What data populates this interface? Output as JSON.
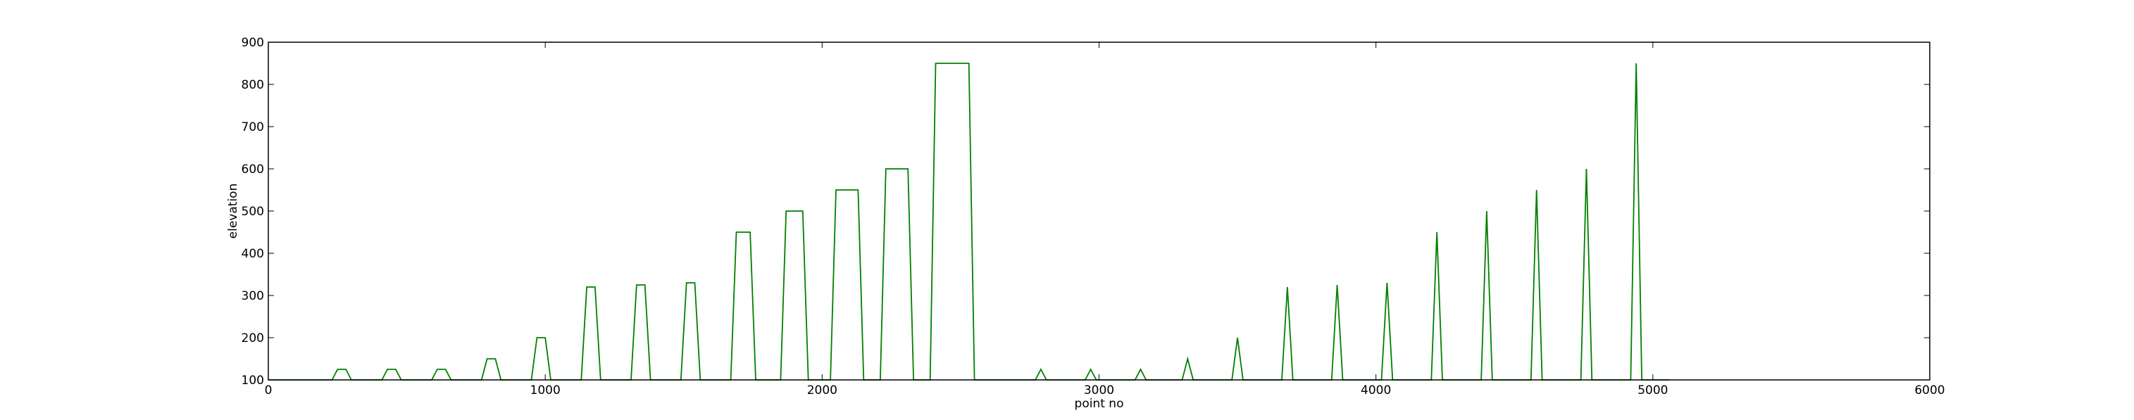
{
  "chart_data": {
    "type": "line",
    "xlabel": "point no",
    "ylabel": "elevation",
    "xlim": [
      0,
      6000
    ],
    "ylim": [
      100,
      900
    ],
    "xticks": [
      0,
      1000,
      2000,
      3000,
      4000,
      5000,
      6000
    ],
    "yticks": [
      100,
      200,
      300,
      400,
      500,
      600,
      700,
      800,
      900
    ],
    "grid": false,
    "legend": "none",
    "series_color": "#008000",
    "series": [
      {
        "x": [
          0,
          230,
          250,
          280,
          300,
          410,
          430,
          460,
          480,
          590,
          610,
          640,
          660,
          770,
          790,
          820,
          840,
          950,
          970,
          1000,
          1020,
          1130,
          1150,
          1180,
          1200,
          1310,
          1330,
          1360,
          1380,
          1490,
          1510,
          1540,
          1560,
          1670,
          1690,
          1740,
          1760,
          1850,
          1870,
          1930,
          1950,
          2030,
          2050,
          2130,
          2150,
          2210,
          2230,
          2310,
          2330,
          2390,
          2410,
          2530,
          2550,
          2770,
          2790,
          2810,
          2950,
          2970,
          2990,
          3130,
          3150,
          3170,
          3300,
          3320,
          3340,
          3480,
          3500,
          3520,
          3660,
          3680,
          3700,
          3840,
          3860,
          3880,
          4020,
          4040,
          4060,
          4200,
          4220,
          4240,
          4380,
          4400,
          4420,
          4560,
          4580,
          4600,
          4740,
          4760,
          4780,
          4920,
          4940,
          4960,
          5060
        ],
        "y": [
          100,
          100,
          125,
          125,
          100,
          100,
          125,
          125,
          100,
          100,
          125,
          125,
          100,
          100,
          150,
          150,
          100,
          100,
          200,
          200,
          100,
          100,
          320,
          320,
          100,
          100,
          325,
          325,
          100,
          100,
          330,
          330,
          100,
          100,
          450,
          450,
          100,
          100,
          500,
          500,
          100,
          100,
          550,
          550,
          100,
          100,
          600,
          600,
          100,
          100,
          850,
          850,
          100,
          100,
          125,
          100,
          100,
          125,
          100,
          100,
          125,
          100,
          100,
          150,
          100,
          100,
          200,
          100,
          100,
          320,
          100,
          100,
          325,
          100,
          100,
          330,
          100,
          100,
          450,
          100,
          100,
          500,
          100,
          100,
          550,
          100,
          100,
          600,
          100,
          100,
          850,
          100,
          100
        ]
      }
    ]
  }
}
